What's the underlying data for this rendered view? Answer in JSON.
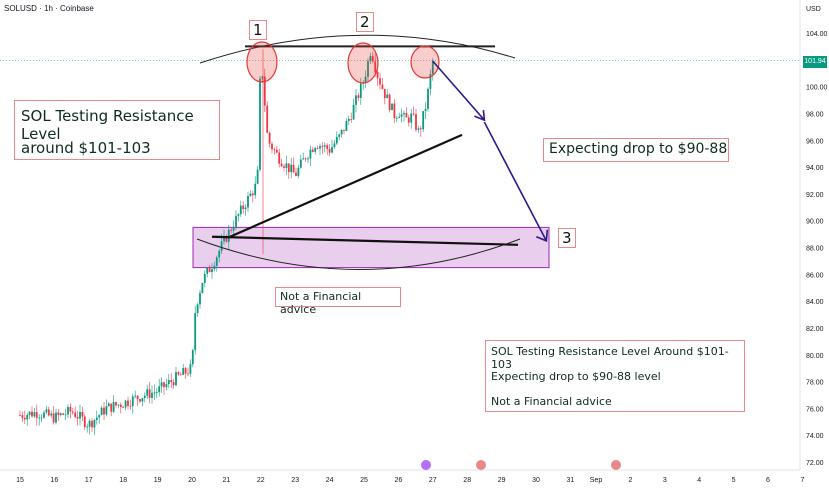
{
  "header": {
    "symbol": "SOLUSD · 1h · Coinbase",
    "currency": "USD"
  },
  "price_tag": "101.94",
  "annotations": {
    "peak_1": "1",
    "peak_2": "2",
    "target_3": "3",
    "title_line1": "SOL Testing Resistance Level",
    "title_line2": "around $101-103",
    "expect": "Expecting drop to $90-88",
    "disclaimer": "Not a Financial advice",
    "summary_line1": "SOL Testing Resistance Level Around $101-103",
    "summary_line2": "Expecting drop to $90-88 level",
    "summary_line3": "Not a Financial advice"
  },
  "colors": {
    "up": "#089981",
    "down": "#f23645",
    "zone_fill": "#e1bee7",
    "zone_border": "#9c27b0",
    "arrow": "#2a1a8a",
    "circle": "#e53935"
  },
  "chart_data": {
    "type": "line",
    "title": "",
    "xlabel": "",
    "ylabel": "",
    "x_ticks": [
      "15",
      "16",
      "17",
      "18",
      "19",
      "20",
      "21",
      "22",
      "23",
      "24",
      "25",
      "26",
      "27",
      "28",
      "29",
      "30",
      "31",
      "Sep",
      "2",
      "3",
      "4",
      "5",
      "6",
      "7"
    ],
    "y_ticks": [
      "104.00",
      "102.00",
      "100.00",
      "98.00",
      "96.00",
      "94.00",
      "92.00",
      "90.00",
      "88.00",
      "86.00",
      "84.00",
      "82.00",
      "80.00",
      "78.00",
      "76.00",
      "74.00",
      "72.00"
    ],
    "ylim": [
      72,
      105
    ],
    "grid": false,
    "series": [
      {
        "x": [
          "15",
          "15.5",
          "16",
          "16.5",
          "17",
          "17.5",
          "18",
          "18.5",
          "19",
          "19.5",
          "20",
          "20.1",
          "20.3",
          "20.6",
          "21",
          "21.3",
          "21.6",
          "21.9",
          "22",
          "22.2",
          "22.5",
          "23",
          "23.3",
          "23.6",
          "24",
          "24.3",
          "24.6",
          "25",
          "25.2",
          "25.4",
          "25.6",
          "25.9",
          "26",
          "26.2",
          "26.4",
          "26.6",
          "26.8",
          "27"
        ],
        "values": [
          75.5,
          75.7,
          75.3,
          75.8,
          74.8,
          76.0,
          76.4,
          76.9,
          77.3,
          78.2,
          79.0,
          83.5,
          85.5,
          86.8,
          88.8,
          90.2,
          91.5,
          92.8,
          102.5,
          96.0,
          94.8,
          93.4,
          94.8,
          95.8,
          95.3,
          96.3,
          97.8,
          100.5,
          102.8,
          100.8,
          99.5,
          97.8,
          98.2,
          97.5,
          97.8,
          96.5,
          98.6,
          101.9
        ]
      }
    ],
    "resistance_zone": [
      101,
      103
    ],
    "support_zone": [
      86.5,
      89.5
    ],
    "projected_path": [
      {
        "x": "27",
        "y": 101.9
      },
      {
        "x": "28.5",
        "y": 97.5
      },
      {
        "x": "30.3",
        "y": 88.5
      }
    ]
  }
}
